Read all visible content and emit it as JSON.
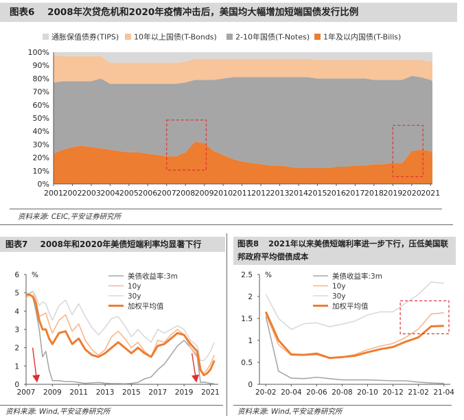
{
  "figure6": {
    "label": "图表6",
    "title": "2008年次贷危机和2020年疫情冲击后，美国均大幅增加短端国债发行比例",
    "source": "资料来源: CEIC,平安证券研究所"
  },
  "figure7": {
    "label": "图表7",
    "title": "2008年和2020年美债短端利率均显著下行",
    "source": "资料来源: Wind,平安证券研究所"
  },
  "figure8": {
    "label": "图表8",
    "title": "2021年以来美债短端利率进一步下行，压低美国联邦政府平均偿债成本",
    "source": "资料来源: Wind,平安证券研究所"
  },
  "colors": {
    "tips": "#d9d9d9",
    "bonds": "#f8c49a",
    "notes": "#a6a6a6",
    "bills": "#ed7d31",
    "line3m": "#a6a6a6",
    "line10y": "#f8b68a",
    "line30y": "#d9d9d9",
    "weighted": "#ed7d31",
    "highlight": "#e03030",
    "arrow": "#e03030"
  },
  "chart_data": [
    {
      "id": "fig6",
      "type": "area",
      "stacked_percent": true,
      "title": "",
      "xlabel": "",
      "ylabel": "",
      "ylim": [
        0,
        100
      ],
      "yticks": [
        "0%",
        "10%",
        "20%",
        "30%",
        "40%",
        "50%",
        "60%",
        "70%",
        "80%",
        "90%",
        "100%"
      ],
      "xticks": [
        "2001",
        "2002",
        "2003",
        "2004",
        "2005",
        "2006",
        "2007",
        "2008",
        "2009",
        "2010",
        "2011",
        "2012",
        "2013",
        "2014",
        "2015",
        "2016",
        "2017",
        "2018",
        "2019",
        "2020",
        "2021"
      ],
      "x": [
        2001,
        2001.5,
        2002,
        2002.5,
        2003,
        2003.5,
        2004,
        2004.5,
        2005,
        2005.5,
        2006,
        2006.5,
        2007,
        2007.5,
        2008,
        2008.5,
        2009,
        2009.5,
        2010,
        2010.5,
        2011,
        2011.5,
        2012,
        2012.5,
        2013,
        2013.5,
        2014,
        2014.5,
        2015,
        2015.5,
        2016,
        2016.5,
        2017,
        2017.5,
        2018,
        2018.5,
        2019,
        2019.5,
        2020,
        2020.5,
        2021,
        2021.1
      ],
      "series": [
        {
          "name": "1年及以内国债(T-Bills)",
          "values": [
            23,
            26,
            28,
            29,
            28,
            27,
            26,
            25,
            24,
            24,
            23,
            22,
            21,
            21,
            24,
            32,
            31,
            25,
            22,
            19,
            17,
            16,
            15,
            14,
            14,
            13,
            12,
            12,
            12,
            12,
            13,
            13,
            14,
            14,
            15,
            15,
            16,
            16,
            25,
            26,
            25,
            23
          ]
        },
        {
          "name": "2-10年国债(T-Notes)",
          "values": [
            54,
            52,
            50,
            49,
            50,
            53,
            50,
            51,
            52,
            52,
            53,
            54,
            55,
            55,
            53,
            47,
            48,
            54,
            58,
            62,
            64,
            65,
            66,
            67,
            67,
            68,
            69,
            69,
            68,
            68,
            67,
            67,
            66,
            66,
            64,
            64,
            63,
            63,
            57,
            55,
            54,
            55
          ]
        },
        {
          "name": "10年以上国债(T-Bonds)",
          "values": [
            21,
            19,
            19,
            19,
            19,
            17,
            16,
            16,
            16,
            16,
            16,
            16,
            16,
            16,
            16,
            16,
            16,
            16,
            15,
            14,
            14,
            14,
            14,
            14,
            14,
            14,
            14,
            14,
            14,
            14,
            14,
            14,
            14,
            14,
            15,
            15,
            15,
            15,
            12,
            13,
            14,
            15
          ]
        },
        {
          "name": "通胀保值债券(TIPS)",
          "values": [
            2,
            3,
            3,
            3,
            3,
            3,
            8,
            8,
            8,
            8,
            8,
            8,
            8,
            8,
            7,
            5,
            5,
            5,
            5,
            5,
            5,
            5,
            5,
            5,
            5,
            5,
            5,
            5,
            6,
            6,
            6,
            6,
            6,
            6,
            6,
            6,
            6,
            6,
            6,
            6,
            7,
            7
          ]
        }
      ],
      "legend": [
        "通胀保值债券(TIPS)",
        "10年以上国债(T-Bonds)",
        "2-10年国债(T-Notes)",
        "1年及以内国债(T-Bills)"
      ],
      "highlights": [
        {
          "from": 2007,
          "to": 2009.1
        },
        {
          "from": 2019,
          "to": 2020.6
        }
      ]
    },
    {
      "id": "fig7",
      "type": "line",
      "title": "",
      "xlabel": "",
      "ylabel": "%",
      "ylim": [
        0,
        6
      ],
      "yticks": [
        "0",
        "1",
        "2",
        "3",
        "4",
        "5",
        "6"
      ],
      "xticks": [
        "2007",
        "2009",
        "2011",
        "2013",
        "2015",
        "2017",
        "2019",
        "2021"
      ],
      "x": [
        2007,
        2007.25,
        2007.5,
        2007.75,
        2008,
        2008.25,
        2008.5,
        2008.75,
        2009,
        2009.5,
        2010,
        2010.5,
        2011,
        2011.5,
        2012,
        2012.5,
        2013,
        2013.5,
        2014,
        2014.5,
        2015,
        2015.5,
        2016,
        2016.5,
        2017,
        2017.5,
        2018,
        2018.5,
        2019,
        2019.5,
        2020,
        2020.25,
        2020.5,
        2020.75,
        2021,
        2021.3
      ],
      "series": [
        {
          "name": "美债收益率:3m",
          "values": [
            5.0,
            4.9,
            4.8,
            4.0,
            3.0,
            1.5,
            1.8,
            0.8,
            0.2,
            0.2,
            0.15,
            0.15,
            0.1,
            0.05,
            0.08,
            0.1,
            0.06,
            0.04,
            0.04,
            0.03,
            0.05,
            0.1,
            0.3,
            0.4,
            0.8,
            1.1,
            1.6,
            2.1,
            2.4,
            2.0,
            1.5,
            0.1,
            0.12,
            0.09,
            0.05,
            0.03
          ]
        },
        {
          "name": "10y",
          "values": [
            4.7,
            4.9,
            5.1,
            4.6,
            3.7,
            3.8,
            3.9,
            3.3,
            2.8,
            3.5,
            3.8,
            2.9,
            3.3,
            2.4,
            1.9,
            1.6,
            1.9,
            2.6,
            2.9,
            2.5,
            2.0,
            2.3,
            1.8,
            1.5,
            2.4,
            2.3,
            2.7,
            3.0,
            2.7,
            2.0,
            1.6,
            0.7,
            0.6,
            0.8,
            1.1,
            1.6
          ]
        },
        {
          "name": "30y",
          "values": [
            4.9,
            5.0,
            5.1,
            4.8,
            4.3,
            4.5,
            4.4,
            3.9,
            3.5,
            4.3,
            4.6,
            3.8,
            4.4,
            3.7,
            3.1,
            2.7,
            3.1,
            3.6,
            3.7,
            3.2,
            2.6,
            3.0,
            2.6,
            2.3,
            3.0,
            2.8,
            3.0,
            3.2,
            3.0,
            2.4,
            2.1,
            1.3,
            1.3,
            1.5,
            1.8,
            2.3
          ]
        },
        {
          "name": "加权平均值",
          "values": [
            4.9,
            4.9,
            4.8,
            4.4,
            3.5,
            3.0,
            3.0,
            2.5,
            2.2,
            2.8,
            2.9,
            2.2,
            2.5,
            1.9,
            1.6,
            1.5,
            1.7,
            2.0,
            2.3,
            2.0,
            1.7,
            2.0,
            1.7,
            1.5,
            2.1,
            2.2,
            2.5,
            2.8,
            2.7,
            2.2,
            1.8,
            0.8,
            0.5,
            0.6,
            0.8,
            1.3
          ]
        }
      ],
      "arrows": [
        {
          "x": 2007.8,
          "from": 2.0,
          "to": 0.3
        },
        {
          "x": 2019.9,
          "from": 1.7,
          "to": 0.3
        }
      ]
    },
    {
      "id": "fig8",
      "type": "line",
      "title": "",
      "xlabel": "",
      "ylabel": "%",
      "ylim": [
        0,
        2.5
      ],
      "yticks": [
        "0",
        "0.5",
        "1",
        "1.5",
        "2",
        "2.5"
      ],
      "categories": [
        "20-02",
        "20-03",
        "20-04",
        "20-05",
        "20-06",
        "20-07",
        "20-08",
        "20-09",
        "20-10",
        "20-11",
        "20-12",
        "21-01",
        "21-02",
        "21-03",
        "21-04"
      ],
      "xticks": [
        "20-02",
        "20-04",
        "20-06",
        "20-08",
        "20-10",
        "20-12",
        "21-02",
        "21-04"
      ],
      "series": [
        {
          "name": "美债收益率:3m",
          "values": [
            1.55,
            0.3,
            0.14,
            0.13,
            0.16,
            0.13,
            0.1,
            0.1,
            0.1,
            0.09,
            0.08,
            0.08,
            0.05,
            0.03,
            0.02
          ]
        },
        {
          "name": "10y",
          "values": [
            1.6,
            0.9,
            0.66,
            0.66,
            0.67,
            0.6,
            0.62,
            0.68,
            0.79,
            0.87,
            0.93,
            1.07,
            1.26,
            1.6,
            1.63
          ]
        },
        {
          "name": "30y",
          "values": [
            2.05,
            1.5,
            1.25,
            1.38,
            1.4,
            1.31,
            1.37,
            1.44,
            1.58,
            1.65,
            1.65,
            1.85,
            2.05,
            2.33,
            2.3
          ]
        },
        {
          "name": "加权平均值",
          "values": [
            1.65,
            1.0,
            0.68,
            0.67,
            0.7,
            0.6,
            0.62,
            0.65,
            0.73,
            0.8,
            0.85,
            0.97,
            1.07,
            1.32,
            1.33
          ]
        }
      ],
      "highlights": [
        {
          "from_index": 11,
          "to_index": 14.5,
          "ymin": 1.15,
          "ymax": 1.9
        }
      ]
    }
  ]
}
